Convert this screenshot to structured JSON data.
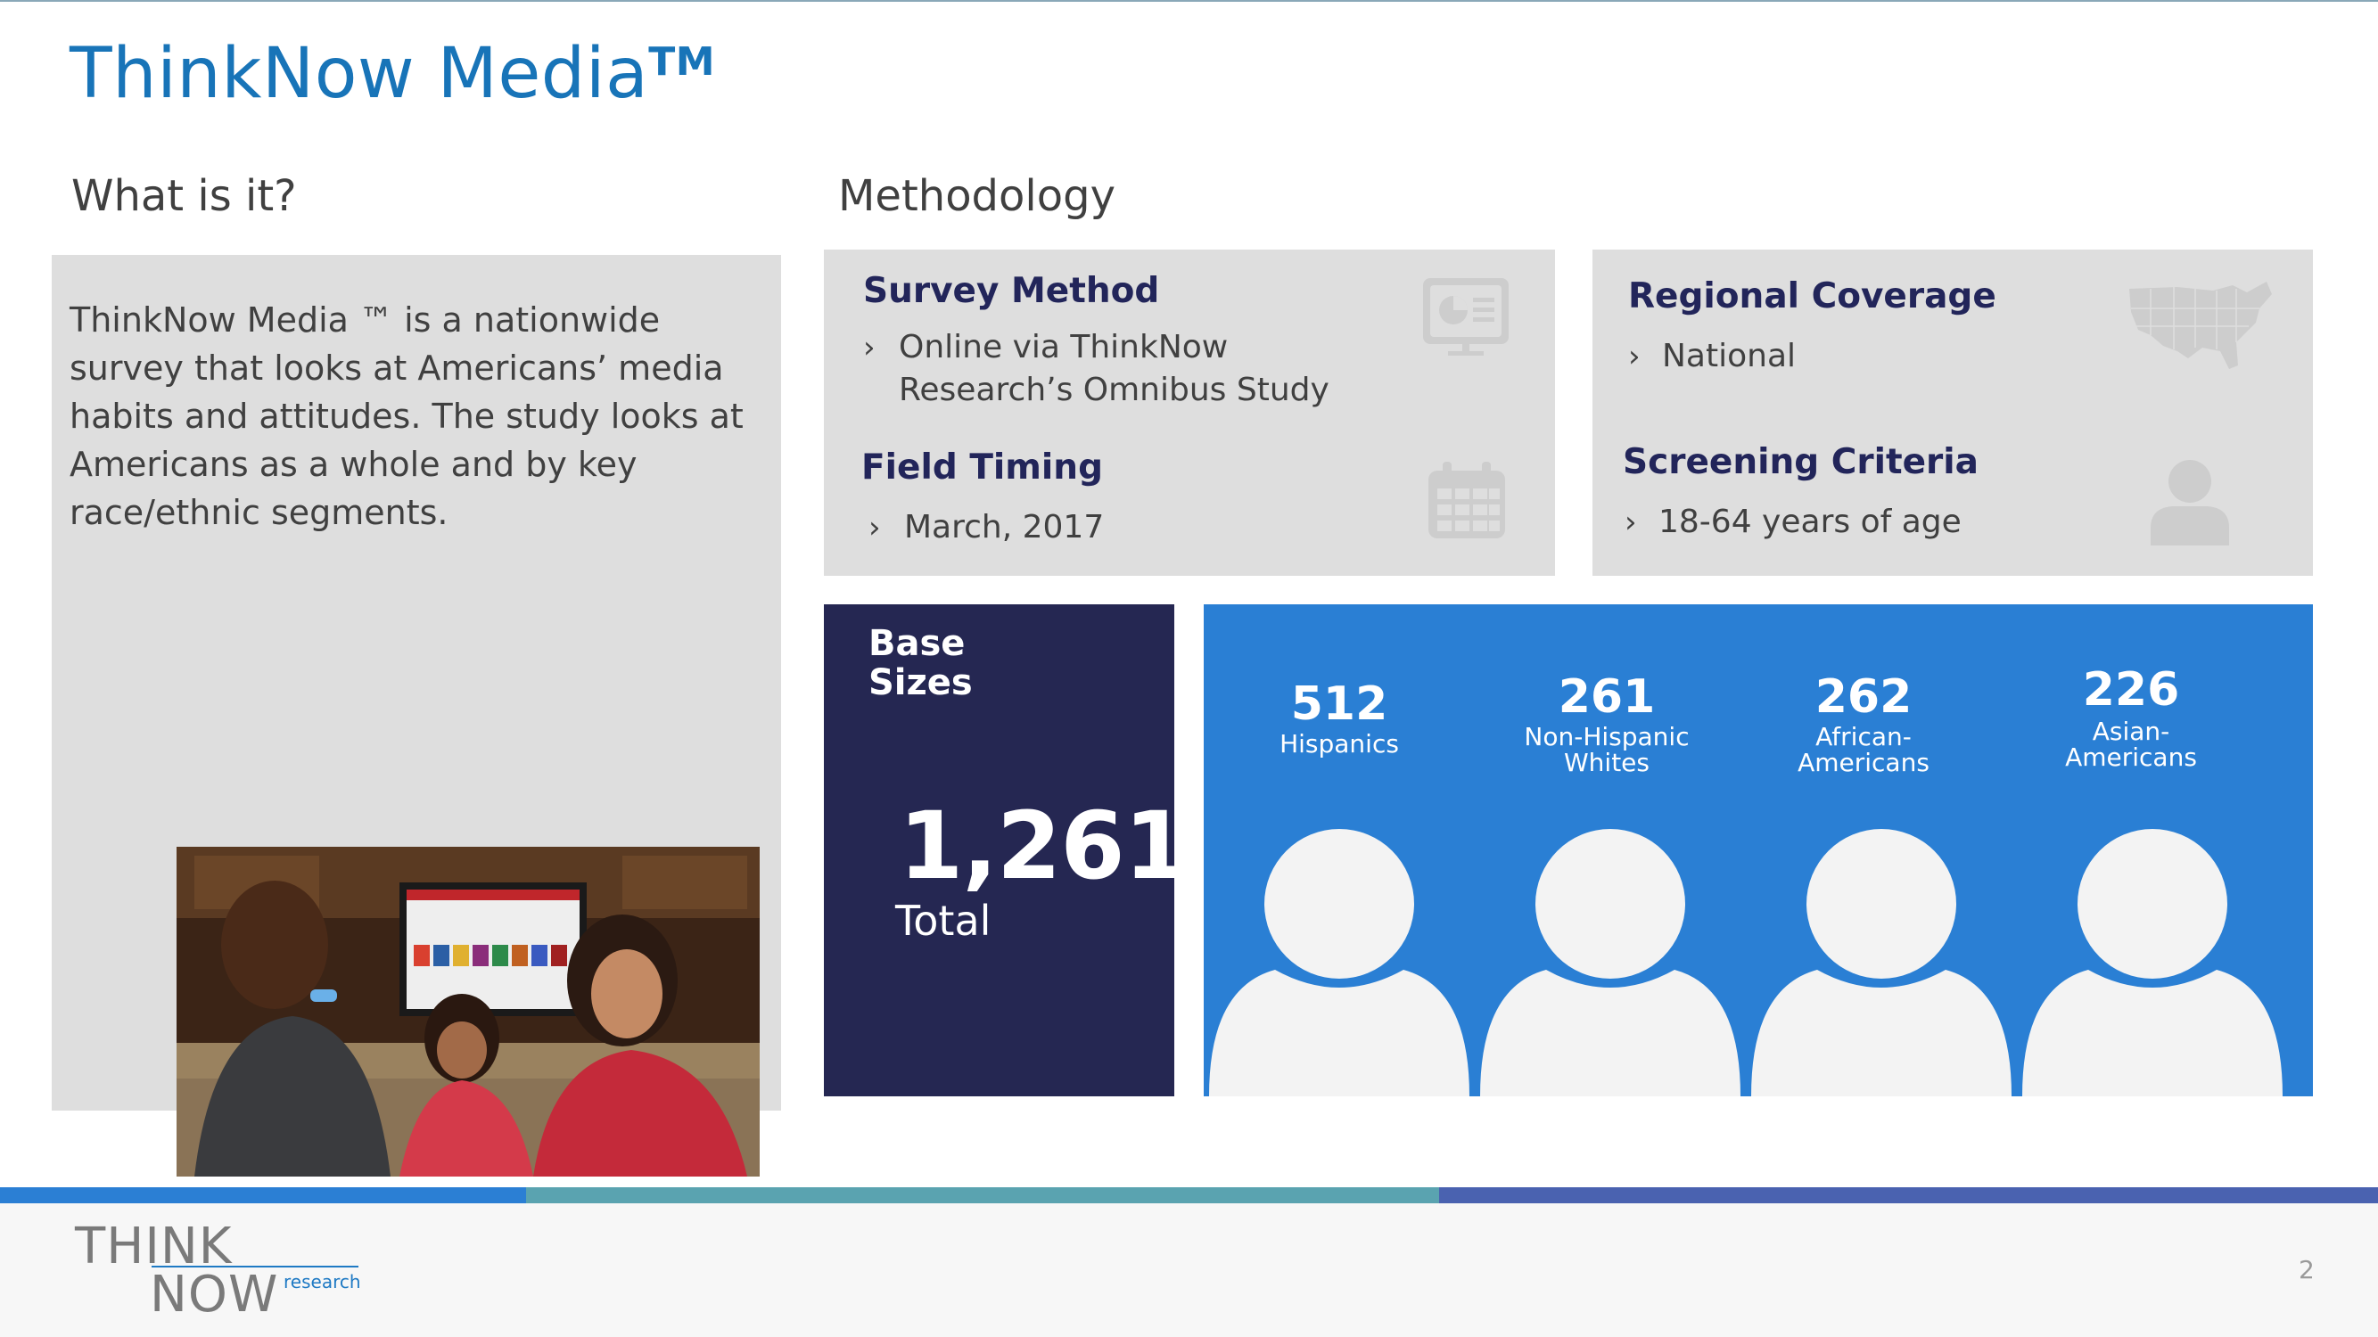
{
  "slide": {
    "title": "ThinkNow Media",
    "trademark": "TM",
    "page_number": "2"
  },
  "what": {
    "heading": "What is it?",
    "description": "ThinkNow Media ™ is a nationwide survey that looks at Americans’ media habits and attitudes. The study looks at Americans as a whole and by key race/ethnic segments."
  },
  "methodology": {
    "heading": "Methodology",
    "survey_method": {
      "title": "Survey Method",
      "bullet": "Online via ThinkNow Research’s Omnibus Study",
      "icon": "presentation-icon"
    },
    "field_timing": {
      "title": "Field Timing",
      "bullet": "March, 2017",
      "icon": "calendar-icon"
    },
    "regional_coverage": {
      "title": "Regional Coverage",
      "bullet": "National",
      "icon": "us-map-icon"
    },
    "screening_criteria": {
      "title": "Screening Criteria",
      "bullet": "18-64 years of age",
      "icon": "person-icon"
    }
  },
  "base_sizes": {
    "label": "Base Sizes",
    "total_value": "1,261",
    "total_label": "Total",
    "segments": [
      {
        "value": "512",
        "label": "Hispanics"
      },
      {
        "value": "261",
        "label": "Non-Hispanic Whites"
      },
      {
        "value": "262",
        "label": "African-Americans"
      },
      {
        "value": "226",
        "label": "Asian-Americans"
      }
    ]
  },
  "logo": {
    "think": "THINK",
    "now": "NOW",
    "research": "research"
  },
  "colors": {
    "title_blue": "#1874b8",
    "navy": "#252752",
    "segment_blue": "#2a7fd4",
    "footer_blue": "#2b7fd4",
    "footer_teal": "#5aa3b0",
    "footer_indigo": "#4a62b0"
  }
}
